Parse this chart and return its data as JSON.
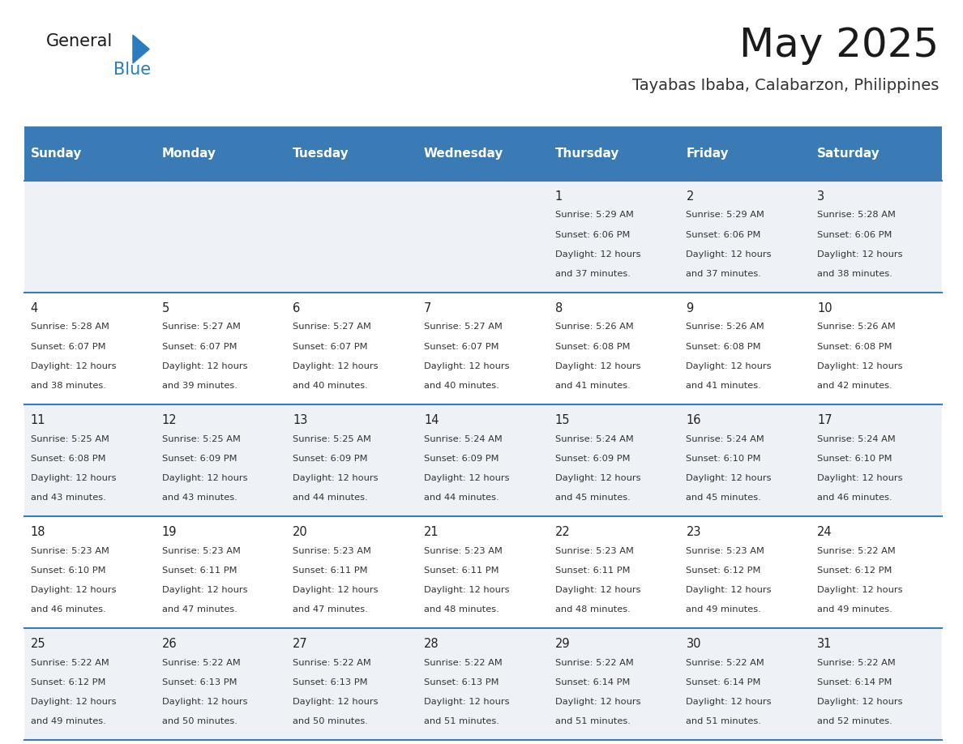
{
  "title": "May 2025",
  "subtitle": "Tayabas Ibaba, Calabarzon, Philippines",
  "header_bg": "#3a7ab5",
  "header_text": "#ffffff",
  "row_bg_odd": "#eef2f7",
  "row_bg_even": "#ffffff",
  "day_headers": [
    "Sunday",
    "Monday",
    "Tuesday",
    "Wednesday",
    "Thursday",
    "Friday",
    "Saturday"
  ],
  "calendar": [
    [
      null,
      null,
      null,
      null,
      {
        "day": 1,
        "sunrise": "5:29 AM",
        "sunset": "6:06 PM",
        "daylight": "12 hours and 37 minutes."
      },
      {
        "day": 2,
        "sunrise": "5:29 AM",
        "sunset": "6:06 PM",
        "daylight": "12 hours and 37 minutes."
      },
      {
        "day": 3,
        "sunrise": "5:28 AM",
        "sunset": "6:06 PM",
        "daylight": "12 hours and 38 minutes."
      }
    ],
    [
      {
        "day": 4,
        "sunrise": "5:28 AM",
        "sunset": "6:07 PM",
        "daylight": "12 hours and 38 minutes."
      },
      {
        "day": 5,
        "sunrise": "5:27 AM",
        "sunset": "6:07 PM",
        "daylight": "12 hours and 39 minutes."
      },
      {
        "day": 6,
        "sunrise": "5:27 AM",
        "sunset": "6:07 PM",
        "daylight": "12 hours and 40 minutes."
      },
      {
        "day": 7,
        "sunrise": "5:27 AM",
        "sunset": "6:07 PM",
        "daylight": "12 hours and 40 minutes."
      },
      {
        "day": 8,
        "sunrise": "5:26 AM",
        "sunset": "6:08 PM",
        "daylight": "12 hours and 41 minutes."
      },
      {
        "day": 9,
        "sunrise": "5:26 AM",
        "sunset": "6:08 PM",
        "daylight": "12 hours and 41 minutes."
      },
      {
        "day": 10,
        "sunrise": "5:26 AM",
        "sunset": "6:08 PM",
        "daylight": "12 hours and 42 minutes."
      }
    ],
    [
      {
        "day": 11,
        "sunrise": "5:25 AM",
        "sunset": "6:08 PM",
        "daylight": "12 hours and 43 minutes."
      },
      {
        "day": 12,
        "sunrise": "5:25 AM",
        "sunset": "6:09 PM",
        "daylight": "12 hours and 43 minutes."
      },
      {
        "day": 13,
        "sunrise": "5:25 AM",
        "sunset": "6:09 PM",
        "daylight": "12 hours and 44 minutes."
      },
      {
        "day": 14,
        "sunrise": "5:24 AM",
        "sunset": "6:09 PM",
        "daylight": "12 hours and 44 minutes."
      },
      {
        "day": 15,
        "sunrise": "5:24 AM",
        "sunset": "6:09 PM",
        "daylight": "12 hours and 45 minutes."
      },
      {
        "day": 16,
        "sunrise": "5:24 AM",
        "sunset": "6:10 PM",
        "daylight": "12 hours and 45 minutes."
      },
      {
        "day": 17,
        "sunrise": "5:24 AM",
        "sunset": "6:10 PM",
        "daylight": "12 hours and 46 minutes."
      }
    ],
    [
      {
        "day": 18,
        "sunrise": "5:23 AM",
        "sunset": "6:10 PM",
        "daylight": "12 hours and 46 minutes."
      },
      {
        "day": 19,
        "sunrise": "5:23 AM",
        "sunset": "6:11 PM",
        "daylight": "12 hours and 47 minutes."
      },
      {
        "day": 20,
        "sunrise": "5:23 AM",
        "sunset": "6:11 PM",
        "daylight": "12 hours and 47 minutes."
      },
      {
        "day": 21,
        "sunrise": "5:23 AM",
        "sunset": "6:11 PM",
        "daylight": "12 hours and 48 minutes."
      },
      {
        "day": 22,
        "sunrise": "5:23 AM",
        "sunset": "6:11 PM",
        "daylight": "12 hours and 48 minutes."
      },
      {
        "day": 23,
        "sunrise": "5:23 AM",
        "sunset": "6:12 PM",
        "daylight": "12 hours and 49 minutes."
      },
      {
        "day": 24,
        "sunrise": "5:22 AM",
        "sunset": "6:12 PM",
        "daylight": "12 hours and 49 minutes."
      }
    ],
    [
      {
        "day": 25,
        "sunrise": "5:22 AM",
        "sunset": "6:12 PM",
        "daylight": "12 hours and 49 minutes."
      },
      {
        "day": 26,
        "sunrise": "5:22 AM",
        "sunset": "6:13 PM",
        "daylight": "12 hours and 50 minutes."
      },
      {
        "day": 27,
        "sunrise": "5:22 AM",
        "sunset": "6:13 PM",
        "daylight": "12 hours and 50 minutes."
      },
      {
        "day": 28,
        "sunrise": "5:22 AM",
        "sunset": "6:13 PM",
        "daylight": "12 hours and 51 minutes."
      },
      {
        "day": 29,
        "sunrise": "5:22 AM",
        "sunset": "6:14 PM",
        "daylight": "12 hours and 51 minutes."
      },
      {
        "day": 30,
        "sunrise": "5:22 AM",
        "sunset": "6:14 PM",
        "daylight": "12 hours and 51 minutes."
      },
      {
        "day": 31,
        "sunrise": "5:22 AM",
        "sunset": "6:14 PM",
        "daylight": "12 hours and 52 minutes."
      }
    ]
  ],
  "fig_width": 11.88,
  "fig_height": 9.18,
  "dpi": 100
}
